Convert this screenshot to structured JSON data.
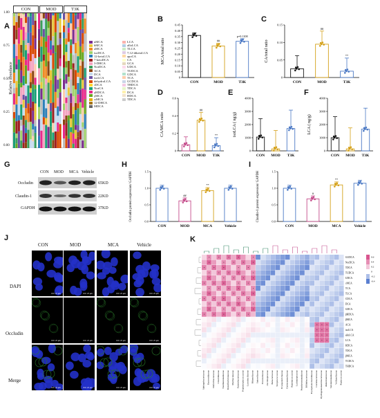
{
  "panel_letters": [
    "A",
    "B",
    "C",
    "D",
    "E",
    "F",
    "G",
    "H",
    "I",
    "J",
    "K"
  ],
  "panelA": {
    "groups": [
      "CON",
      "MOD",
      "T3K"
    ],
    "ylabel": "Relative abundance",
    "yticks": [
      "1.00",
      "0.75",
      "0.50",
      "0.25",
      "0.00"
    ],
    "legend_col1": [
      "uMCA",
      "bMCA",
      "aMCA",
      "isoDCA",
      "12-ketoLCA",
      "7-ketoDCA",
      "3-DHCA",
      "NorDCA",
      "ACA",
      "DCA",
      "isoLCA",
      "dehydroLCA",
      "cDCA",
      "NorCA",
      "γHDCA",
      "γMCA",
      "ωMCA",
      "12-DHCA",
      "MDCA"
    ],
    "legend_col2": [
      "LCA",
      "alloLCA",
      "TLCA",
      "7,12-diketoLCA",
      "apoCA",
      "CA",
      "GCA",
      "UDCA",
      "TUDCA",
      "GDCA",
      "TCA",
      "GCDCA",
      "THDCA",
      "TDCA",
      "DCA",
      "HDCA",
      "TDCA"
    ],
    "legend_colors_col1": [
      "#7b2d8e",
      "#e8c83a",
      "#f08a24",
      "#a0d26a",
      "#2c7fb8",
      "#9e1f1f",
      "#f4a3c0",
      "#3a9e5a",
      "#8b4513",
      "#c6dbef",
      "#6a51a3",
      "#d94801",
      "#ffd92f",
      "#1b9e77",
      "#e7298a",
      "#66a61e",
      "#e6ab02",
      "#a6761d",
      "#666666"
    ],
    "legend_colors_col2": [
      "#fbb4ae",
      "#b3cde3",
      "#ccebc5",
      "#decbe4",
      "#fed9a6",
      "#ffffcc",
      "#e5d8bd",
      "#fddaec",
      "#f2f2f2",
      "#b3e2cd",
      "#fdcdac",
      "#cbd5e8",
      "#f4cae4",
      "#e6f5c9",
      "#fff2ae",
      "#f1e2cc",
      "#cccccc"
    ]
  },
  "panelB": {
    "ylabel": "MCA/total ratio",
    "ylim": [
      0,
      0.45
    ],
    "yticks": [
      "0",
      "0.05",
      "0.10",
      "0.15",
      "0.20",
      "0.25",
      "0.30",
      "0.35",
      "0.40",
      "0.45"
    ],
    "categories": [
      "CON",
      "MOD",
      "T3K"
    ],
    "values": [
      0.36,
      0.27,
      0.31
    ],
    "sig": [
      "",
      "##",
      "p=0.1108"
    ]
  },
  "panelC": {
    "ylabel": "CA/total ratio",
    "ylim": [
      0,
      0.15
    ],
    "yticks": [
      "0",
      "0.05",
      "0.10",
      "0.15"
    ],
    "categories": [
      "CON",
      "MOD",
      "T3K"
    ],
    "values": [
      0.025,
      0.095,
      0.018
    ],
    "sig": [
      "",
      "##",
      "**"
    ]
  },
  "panelD": {
    "ylabel": "CA/MCA ratio",
    "ylim": [
      0,
      0.6
    ],
    "yticks": [
      "0",
      "0.2",
      "0.4",
      "0.6"
    ],
    "categories": [
      "CON",
      "MOD",
      "T3K"
    ],
    "values": [
      0.07,
      0.35,
      0.06
    ],
    "sig": [
      "",
      "##",
      "**"
    ]
  },
  "panelE": {
    "ylabel": "isoLCA ( ng/g)",
    "ylim": [
      0,
      4000
    ],
    "yticks": [
      "0",
      "1000",
      "2000",
      "3000",
      "4000"
    ],
    "categories": [
      "CON",
      "MOD",
      "T3K"
    ],
    "values": [
      1050,
      150,
      1700
    ],
    "sig": [
      "",
      "",
      ""
    ]
  },
  "panelF": {
    "ylabel": "LCA ( ng/g)",
    "ylim": [
      0,
      4000
    ],
    "yticks": [
      "0",
      "1000",
      "2000",
      "3000",
      "4000"
    ],
    "categories": [
      "CON",
      "MOD",
      "T3K"
    ],
    "values": [
      1000,
      150,
      1650
    ],
    "sig": [
      "",
      "",
      ""
    ]
  },
  "panelG": {
    "lanes": [
      "CON",
      "MOD",
      "MCA",
      "Vehicle"
    ],
    "proteins": [
      "Occludin",
      "Claudin-1",
      "GAPDH"
    ],
    "sizes": [
      "65KD",
      "22KD",
      "37KD"
    ]
  },
  "panelH": {
    "ylabel": "Occludin protein expression/ GAPDH",
    "ylim": [
      0,
      1.5
    ],
    "yticks": [
      "0.0",
      "0.5",
      "1.0",
      "1.5"
    ],
    "categories": [
      "CON",
      "MOD",
      "MCA",
      "Vehicle"
    ],
    "values": [
      1.0,
      0.62,
      0.93,
      1.0
    ],
    "sig": [
      "",
      "##",
      "**",
      ""
    ]
  },
  "panelI": {
    "ylabel": "Claudin-1 protein expression/ GAPDH",
    "ylim": [
      0,
      1.5
    ],
    "yticks": [
      "0.0",
      "0.5",
      "1.0",
      "1.5"
    ],
    "categories": [
      "CON",
      "MOD",
      "MCA",
      "Vehicle"
    ],
    "values": [
      1.0,
      0.68,
      1.1,
      1.15
    ],
    "sig": [
      "",
      "#",
      "**",
      ""
    ]
  },
  "panelJ": {
    "columns": [
      "CON",
      "MOD",
      "MCA",
      "Vehicle"
    ],
    "rows": [
      "DAPI",
      "Occludin",
      "Merge"
    ],
    "scale_text": "25 μm"
  },
  "panelK": {
    "rows": [
      "GUDCA",
      "NorDCA",
      "TDCA",
      "TUDCA",
      "UDCA",
      "cMCA",
      "TCA",
      "TLCA",
      "CDCA",
      "DCA",
      "GDCA",
      "βHDCA",
      "βMCA",
      "ACA",
      "isoLCA",
      "alloLCA",
      "LCA",
      "HDCA",
      "TDCA2",
      "βMCA2",
      "TCDCA",
      "THDCA"
    ],
    "cols": [
      "Sphingobacteriaceae",
      "Bacteroidaceae",
      "Deferribacteraceae",
      "Clostridiaceae",
      "Xanthomonadaceae",
      "Desulfovibrionaceae",
      "Muribaculaceae",
      "Enterobacteriaceae",
      "Peptostreptococcaceae",
      "Lactobacillaceae",
      "Rikenellaceae",
      "Sutterellaceae",
      "Prevotellaceae",
      "Oscillospiraceae",
      "Eubacteriaceae",
      "Streptococcaceae",
      "Erysipelotrichaceae",
      "Christensenellaceae",
      "Ruminococcaceae",
      "Lachnospiraceae",
      "Porphyromonadaceae",
      "Bifidobacteriaceae",
      "Erysipelatoclostridiaceae",
      "Coriobacteriaceae",
      "Hydrogenoanaerobacteriaceae",
      "Akkermansiaceae",
      "Selenomonadaceae",
      "Veillonellaceae",
      "Peptococcaceae"
    ],
    "scale": [
      "0.6",
      "0.4",
      "0.2",
      "0",
      "-0.2",
      "-0.4"
    ]
  },
  "colors": {
    "blue_bar": "#4a78c4",
    "gold": "#d4a017",
    "pink": "#c44a8a",
    "heat_pos": "#d9568f",
    "heat_neg": "#5a7fd0"
  }
}
